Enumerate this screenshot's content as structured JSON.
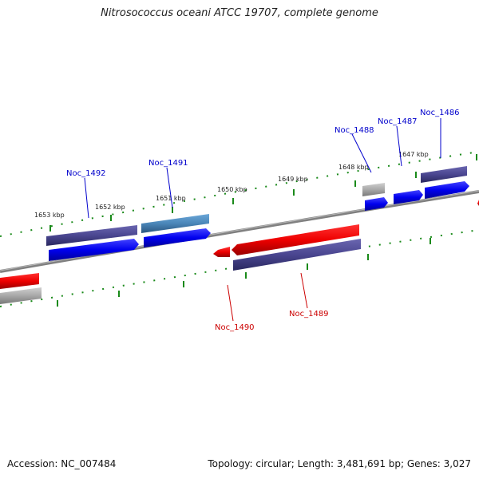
{
  "title": "Nitrosococcus oceani ATCC 19707, complete genome",
  "accession": "Accession: NC_007484",
  "summary": "Topology: circular; Length: 3,481,691 bp; Genes: 3,027",
  "scale_labels": [
    "1647 kbp",
    "1648 kbp",
    "1649 kbp",
    "1650 kbp",
    "1651 kbp",
    "1652 kbp",
    "1653 kbp"
  ],
  "gene_labels": {
    "forward": [
      "Noc_1486",
      "Noc_1487",
      "Noc_1488",
      "Noc_1491",
      "Noc_1492"
    ],
    "reverse": [
      "Noc_1489",
      "Noc_1490"
    ]
  },
  "colors": {
    "forward_label": "#0000cc",
    "reverse_label": "#cc0000",
    "backbone": "#808080",
    "tick": "#1a8a1a",
    "forward_gene": "#0000ee",
    "reverse_gene": "#ee0000",
    "protein_bar": "#4a4690",
    "steel_bar": "#4a86b8",
    "grey_bar": "#a8a8a8"
  }
}
